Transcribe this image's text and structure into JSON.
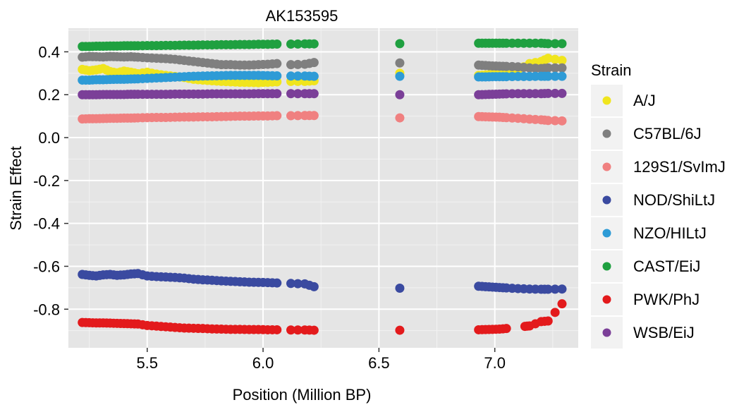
{
  "chart_data": {
    "type": "scatter",
    "title": "AK153595",
    "xlabel": "Position (Million BP)",
    "ylabel": "Strain Effect",
    "xlim": [
      5.16,
      7.36
    ],
    "ylim": [
      -0.98,
      0.51
    ],
    "xticks": [
      5.5,
      6.0,
      6.5,
      7.0
    ],
    "xtick_labels": [
      "5.5",
      "6.0",
      "6.5",
      "7.0"
    ],
    "yticks": [
      0.4,
      0.2,
      0.0,
      -0.2,
      -0.4,
      -0.6,
      -0.8
    ],
    "ytick_labels": [
      "0.4",
      "0.2",
      "0.0",
      "-0.2",
      "-0.4",
      "-0.6",
      "-0.8"
    ],
    "grid": true,
    "legend": {
      "title": "Strain",
      "position": "right"
    },
    "series": [
      {
        "name": "A/J",
        "color": "#F0E51E",
        "x": [
          5.22,
          5.25,
          5.28,
          5.31,
          5.34,
          5.37,
          5.4,
          5.43,
          5.46,
          5.5,
          5.54,
          5.58,
          5.62,
          5.66,
          5.7,
          5.74,
          5.78,
          5.82,
          5.86,
          5.9,
          5.94,
          5.98,
          6.02,
          6.06,
          6.12,
          6.18,
          6.22,
          6.59,
          6.93,
          6.96,
          6.99,
          7.02,
          7.05,
          7.1,
          7.15,
          7.2,
          7.23,
          7.29
        ],
        "y": [
          0.318,
          0.312,
          0.316,
          0.322,
          0.308,
          0.302,
          0.31,
          0.305,
          0.298,
          0.305,
          0.296,
          0.29,
          0.285,
          0.28,
          0.272,
          0.268,
          0.265,
          0.262,
          0.26,
          0.258,
          0.257,
          0.256,
          0.258,
          0.26,
          0.262,
          0.262,
          0.265,
          0.3,
          0.29,
          0.292,
          0.295,
          0.298,
          0.302,
          0.315,
          0.345,
          0.355,
          0.37,
          0.36
        ]
      },
      {
        "name": "C57BL/6J",
        "color": "#7F7F7F",
        "x": [
          5.22,
          5.25,
          5.28,
          5.31,
          5.34,
          5.37,
          5.4,
          5.43,
          5.46,
          5.5,
          5.54,
          5.58,
          5.62,
          5.66,
          5.7,
          5.74,
          5.78,
          5.82,
          5.86,
          5.9,
          5.94,
          5.98,
          6.02,
          6.06,
          6.12,
          6.18,
          6.22,
          6.59,
          6.93,
          6.96,
          6.99,
          7.02,
          7.05,
          7.1,
          7.15,
          7.2,
          7.23,
          7.29
        ],
        "y": [
          0.375,
          0.378,
          0.377,
          0.376,
          0.378,
          0.377,
          0.376,
          0.377,
          0.375,
          0.372,
          0.37,
          0.368,
          0.365,
          0.36,
          0.355,
          0.35,
          0.345,
          0.34,
          0.34,
          0.338,
          0.338,
          0.34,
          0.342,
          0.345,
          0.34,
          0.342,
          0.35,
          0.348,
          0.338,
          0.336,
          0.334,
          0.333,
          0.332,
          0.33,
          0.325,
          0.322,
          0.325,
          0.325
        ]
      },
      {
        "name": "129S1/SvImJ",
        "color": "#F08080",
        "x": [
          5.22,
          5.25,
          5.28,
          5.31,
          5.34,
          5.37,
          5.4,
          5.43,
          5.46,
          5.5,
          5.54,
          5.58,
          5.62,
          5.66,
          5.7,
          5.74,
          5.78,
          5.82,
          5.86,
          5.9,
          5.94,
          5.98,
          6.02,
          6.06,
          6.12,
          6.18,
          6.22,
          6.59,
          6.93,
          6.96,
          6.99,
          7.02,
          7.05,
          7.1,
          7.15,
          7.2,
          7.23,
          7.29
        ],
        "y": [
          0.087,
          0.088,
          0.088,
          0.089,
          0.09,
          0.09,
          0.091,
          0.091,
          0.092,
          0.093,
          0.094,
          0.094,
          0.095,
          0.096,
          0.096,
          0.097,
          0.097,
          0.098,
          0.099,
          0.1,
          0.1,
          0.101,
          0.101,
          0.102,
          0.102,
          0.103,
          0.103,
          0.092,
          0.098,
          0.097,
          0.096,
          0.095,
          0.093,
          0.09,
          0.086,
          0.083,
          0.08,
          0.078
        ]
      },
      {
        "name": "NOD/ShiLtJ",
        "color": "#3A4AA0",
        "x": [
          5.22,
          5.25,
          5.28,
          5.31,
          5.34,
          5.37,
          5.4,
          5.43,
          5.46,
          5.5,
          5.54,
          5.58,
          5.62,
          5.66,
          5.7,
          5.74,
          5.78,
          5.82,
          5.86,
          5.9,
          5.94,
          5.98,
          6.02,
          6.06,
          6.12,
          6.18,
          6.22,
          6.59,
          6.93,
          6.96,
          6.99,
          7.02,
          7.05,
          7.1,
          7.15,
          7.2,
          7.23,
          7.29
        ],
        "y": [
          -0.638,
          -0.642,
          -0.645,
          -0.64,
          -0.638,
          -0.642,
          -0.64,
          -0.636,
          -0.634,
          -0.645,
          -0.648,
          -0.65,
          -0.652,
          -0.655,
          -0.66,
          -0.663,
          -0.665,
          -0.668,
          -0.67,
          -0.672,
          -0.674,
          -0.675,
          -0.676,
          -0.678,
          -0.68,
          -0.682,
          -0.695,
          -0.702,
          -0.693,
          -0.695,
          -0.697,
          -0.699,
          -0.701,
          -0.704,
          -0.706,
          -0.707,
          -0.707,
          -0.706
        ]
      },
      {
        "name": "NZO/HILtJ",
        "color": "#2E9BD6",
        "x": [
          5.22,
          5.25,
          5.28,
          5.31,
          5.34,
          5.37,
          5.4,
          5.43,
          5.46,
          5.5,
          5.54,
          5.58,
          5.62,
          5.66,
          5.7,
          5.74,
          5.78,
          5.82,
          5.86,
          5.9,
          5.94,
          5.98,
          6.02,
          6.06,
          6.12,
          6.18,
          6.22,
          6.59,
          6.93,
          6.96,
          6.99,
          7.02,
          7.05,
          7.1,
          7.15,
          7.2,
          7.23,
          7.29
        ],
        "y": [
          0.268,
          0.268,
          0.27,
          0.27,
          0.271,
          0.272,
          0.272,
          0.273,
          0.274,
          0.276,
          0.278,
          0.28,
          0.282,
          0.284,
          0.286,
          0.287,
          0.288,
          0.289,
          0.29,
          0.29,
          0.29,
          0.29,
          0.289,
          0.288,
          0.287,
          0.287,
          0.286,
          0.286,
          0.283,
          0.283,
          0.284,
          0.284,
          0.284,
          0.285,
          0.285,
          0.286,
          0.286,
          0.286
        ]
      },
      {
        "name": "CAST/EiJ",
        "color": "#1FA040",
        "x": [
          5.22,
          5.25,
          5.28,
          5.31,
          5.34,
          5.37,
          5.4,
          5.43,
          5.46,
          5.5,
          5.54,
          5.58,
          5.62,
          5.66,
          5.7,
          5.74,
          5.78,
          5.82,
          5.86,
          5.9,
          5.94,
          5.98,
          6.02,
          6.06,
          6.12,
          6.18,
          6.22,
          6.59,
          6.93,
          6.96,
          6.99,
          7.02,
          7.05,
          7.1,
          7.15,
          7.2,
          7.23,
          7.29
        ],
        "y": [
          0.425,
          0.425,
          0.426,
          0.426,
          0.427,
          0.427,
          0.428,
          0.428,
          0.428,
          0.429,
          0.429,
          0.43,
          0.43,
          0.431,
          0.431,
          0.432,
          0.432,
          0.433,
          0.433,
          0.434,
          0.434,
          0.435,
          0.435,
          0.436,
          0.436,
          0.437,
          0.437,
          0.438,
          0.44,
          0.44,
          0.44,
          0.44,
          0.44,
          0.44,
          0.44,
          0.44,
          0.438,
          0.438
        ]
      },
      {
        "name": "PWK/PhJ",
        "color": "#E31A1C",
        "x": [
          5.22,
          5.25,
          5.28,
          5.31,
          5.34,
          5.37,
          5.4,
          5.43,
          5.46,
          5.5,
          5.54,
          5.58,
          5.62,
          5.66,
          5.7,
          5.74,
          5.78,
          5.82,
          5.86,
          5.9,
          5.94,
          5.98,
          6.02,
          6.06,
          6.12,
          6.18,
          6.22,
          6.59,
          6.93,
          6.96,
          6.99,
          7.02,
          7.05,
          7.13,
          7.15,
          7.2,
          7.23,
          7.29
        ],
        "y": [
          -0.862,
          -0.863,
          -0.864,
          -0.864,
          -0.865,
          -0.866,
          -0.867,
          -0.868,
          -0.869,
          -0.876,
          -0.879,
          -0.882,
          -0.885,
          -0.888,
          -0.889,
          -0.89,
          -0.892,
          -0.893,
          -0.894,
          -0.894,
          -0.895,
          -0.895,
          -0.896,
          -0.896,
          -0.897,
          -0.897,
          -0.898,
          -0.898,
          -0.896,
          -0.895,
          -0.894,
          -0.893,
          -0.89,
          -0.88,
          -0.878,
          -0.858,
          -0.855,
          -0.775
        ]
      },
      {
        "name": "WSB/EiJ",
        "color": "#7B3F98",
        "x": [
          5.22,
          5.25,
          5.28,
          5.31,
          5.34,
          5.37,
          5.4,
          5.43,
          5.46,
          5.5,
          5.54,
          5.58,
          5.62,
          5.66,
          5.7,
          5.74,
          5.78,
          5.82,
          5.86,
          5.9,
          5.94,
          5.98,
          6.02,
          6.06,
          6.12,
          6.18,
          6.22,
          6.59,
          6.93,
          6.96,
          6.99,
          7.02,
          7.05,
          7.1,
          7.15,
          7.2,
          7.23,
          7.29
        ],
        "y": [
          0.2,
          0.2,
          0.2,
          0.201,
          0.201,
          0.201,
          0.201,
          0.202,
          0.202,
          0.202,
          0.202,
          0.202,
          0.203,
          0.203,
          0.203,
          0.203,
          0.204,
          0.204,
          0.204,
          0.204,
          0.204,
          0.205,
          0.205,
          0.205,
          0.205,
          0.205,
          0.205,
          0.2,
          0.2,
          0.201,
          0.202,
          0.203,
          0.204,
          0.205,
          0.205,
          0.205,
          0.206,
          0.206
        ]
      }
    ]
  }
}
